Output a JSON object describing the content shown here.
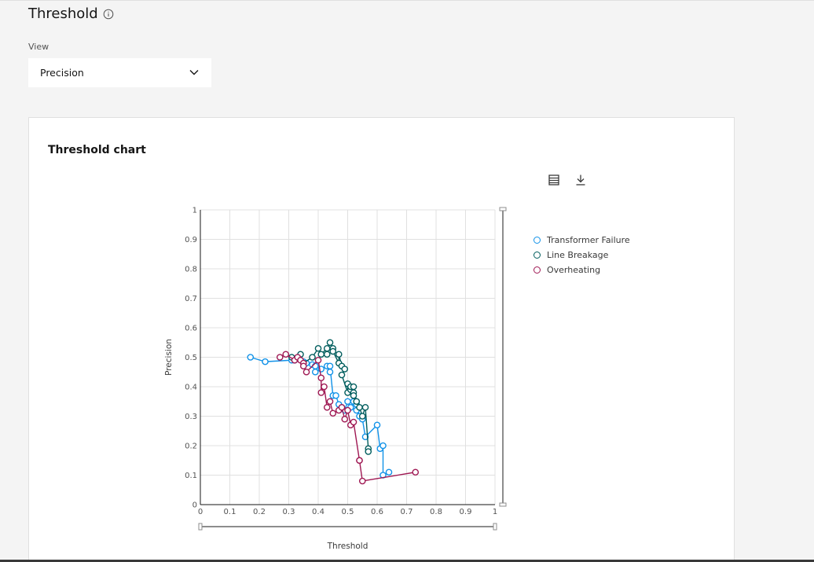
{
  "page": {
    "title": "Threshold",
    "view_label": "View",
    "view_value": "Precision"
  },
  "card": {
    "title": "Threshold chart"
  },
  "chart_data": {
    "type": "line",
    "title": "",
    "xlabel": "Threshold",
    "ylabel": "Precision",
    "xlim": [
      0,
      1
    ],
    "ylim": [
      0,
      1
    ],
    "x_ticks": [
      "0",
      "0.1",
      "0.2",
      "0.3",
      "0.4",
      "0.5",
      "0.6",
      "0.7",
      "0.8",
      "0.9",
      "1"
    ],
    "y_ticks": [
      "0",
      "0.1",
      "0.2",
      "0.3",
      "0.4",
      "0.5",
      "0.6",
      "0.7",
      "0.8",
      "0.9",
      "1"
    ],
    "grid": true,
    "legend_position": "right",
    "series": [
      {
        "name": "Transformer Failure",
        "color": "#1192e8",
        "points": [
          [
            0.17,
            0.5
          ],
          [
            0.22,
            0.485
          ],
          [
            0.31,
            0.49
          ],
          [
            0.32,
            0.49
          ],
          [
            0.35,
            0.485
          ],
          [
            0.36,
            0.48
          ],
          [
            0.38,
            0.475
          ],
          [
            0.39,
            0.47
          ],
          [
            0.39,
            0.45
          ],
          [
            0.41,
            0.46
          ],
          [
            0.43,
            0.47
          ],
          [
            0.44,
            0.45
          ],
          [
            0.44,
            0.47
          ],
          [
            0.45,
            0.37
          ],
          [
            0.46,
            0.37
          ],
          [
            0.47,
            0.34
          ],
          [
            0.48,
            0.33
          ],
          [
            0.49,
            0.32
          ],
          [
            0.5,
            0.35
          ],
          [
            0.51,
            0.33
          ],
          [
            0.52,
            0.35
          ],
          [
            0.53,
            0.32
          ],
          [
            0.53,
            0.34
          ],
          [
            0.54,
            0.3
          ],
          [
            0.55,
            0.29
          ],
          [
            0.56,
            0.23
          ],
          [
            0.6,
            0.27
          ],
          [
            0.61,
            0.19
          ],
          [
            0.62,
            0.2
          ],
          [
            0.62,
            0.1
          ],
          [
            0.64,
            0.11
          ]
        ]
      },
      {
        "name": "Line Breakage",
        "color": "#005d5d",
        "points": [
          [
            0.31,
            0.5
          ],
          [
            0.34,
            0.51
          ],
          [
            0.35,
            0.48
          ],
          [
            0.38,
            0.5
          ],
          [
            0.4,
            0.53
          ],
          [
            0.41,
            0.51
          ],
          [
            0.43,
            0.53
          ],
          [
            0.43,
            0.51
          ],
          [
            0.44,
            0.55
          ],
          [
            0.45,
            0.53
          ],
          [
            0.45,
            0.52
          ],
          [
            0.47,
            0.48
          ],
          [
            0.47,
            0.51
          ],
          [
            0.48,
            0.47
          ],
          [
            0.49,
            0.46
          ],
          [
            0.48,
            0.44
          ],
          [
            0.5,
            0.38
          ],
          [
            0.5,
            0.41
          ],
          [
            0.51,
            0.39
          ],
          [
            0.51,
            0.4
          ],
          [
            0.52,
            0.38
          ],
          [
            0.52,
            0.37
          ],
          [
            0.52,
            0.4
          ],
          [
            0.53,
            0.35
          ],
          [
            0.54,
            0.33
          ],
          [
            0.55,
            0.3
          ],
          [
            0.56,
            0.33
          ],
          [
            0.57,
            0.19
          ],
          [
            0.57,
            0.18
          ]
        ]
      },
      {
        "name": "Overheating",
        "color": "#9f1853",
        "points": [
          [
            0.27,
            0.5
          ],
          [
            0.29,
            0.51
          ],
          [
            0.32,
            0.49
          ],
          [
            0.33,
            0.5
          ],
          [
            0.34,
            0.49
          ],
          [
            0.35,
            0.48
          ],
          [
            0.35,
            0.47
          ],
          [
            0.36,
            0.45
          ],
          [
            0.4,
            0.49
          ],
          [
            0.41,
            0.43
          ],
          [
            0.41,
            0.38
          ],
          [
            0.42,
            0.4
          ],
          [
            0.43,
            0.33
          ],
          [
            0.44,
            0.35
          ],
          [
            0.45,
            0.31
          ],
          [
            0.47,
            0.32
          ],
          [
            0.48,
            0.33
          ],
          [
            0.49,
            0.29
          ],
          [
            0.5,
            0.32
          ],
          [
            0.51,
            0.27
          ],
          [
            0.52,
            0.28
          ],
          [
            0.54,
            0.15
          ],
          [
            0.54,
            0.15
          ],
          [
            0.55,
            0.08
          ],
          [
            0.73,
            0.11
          ]
        ]
      }
    ]
  }
}
